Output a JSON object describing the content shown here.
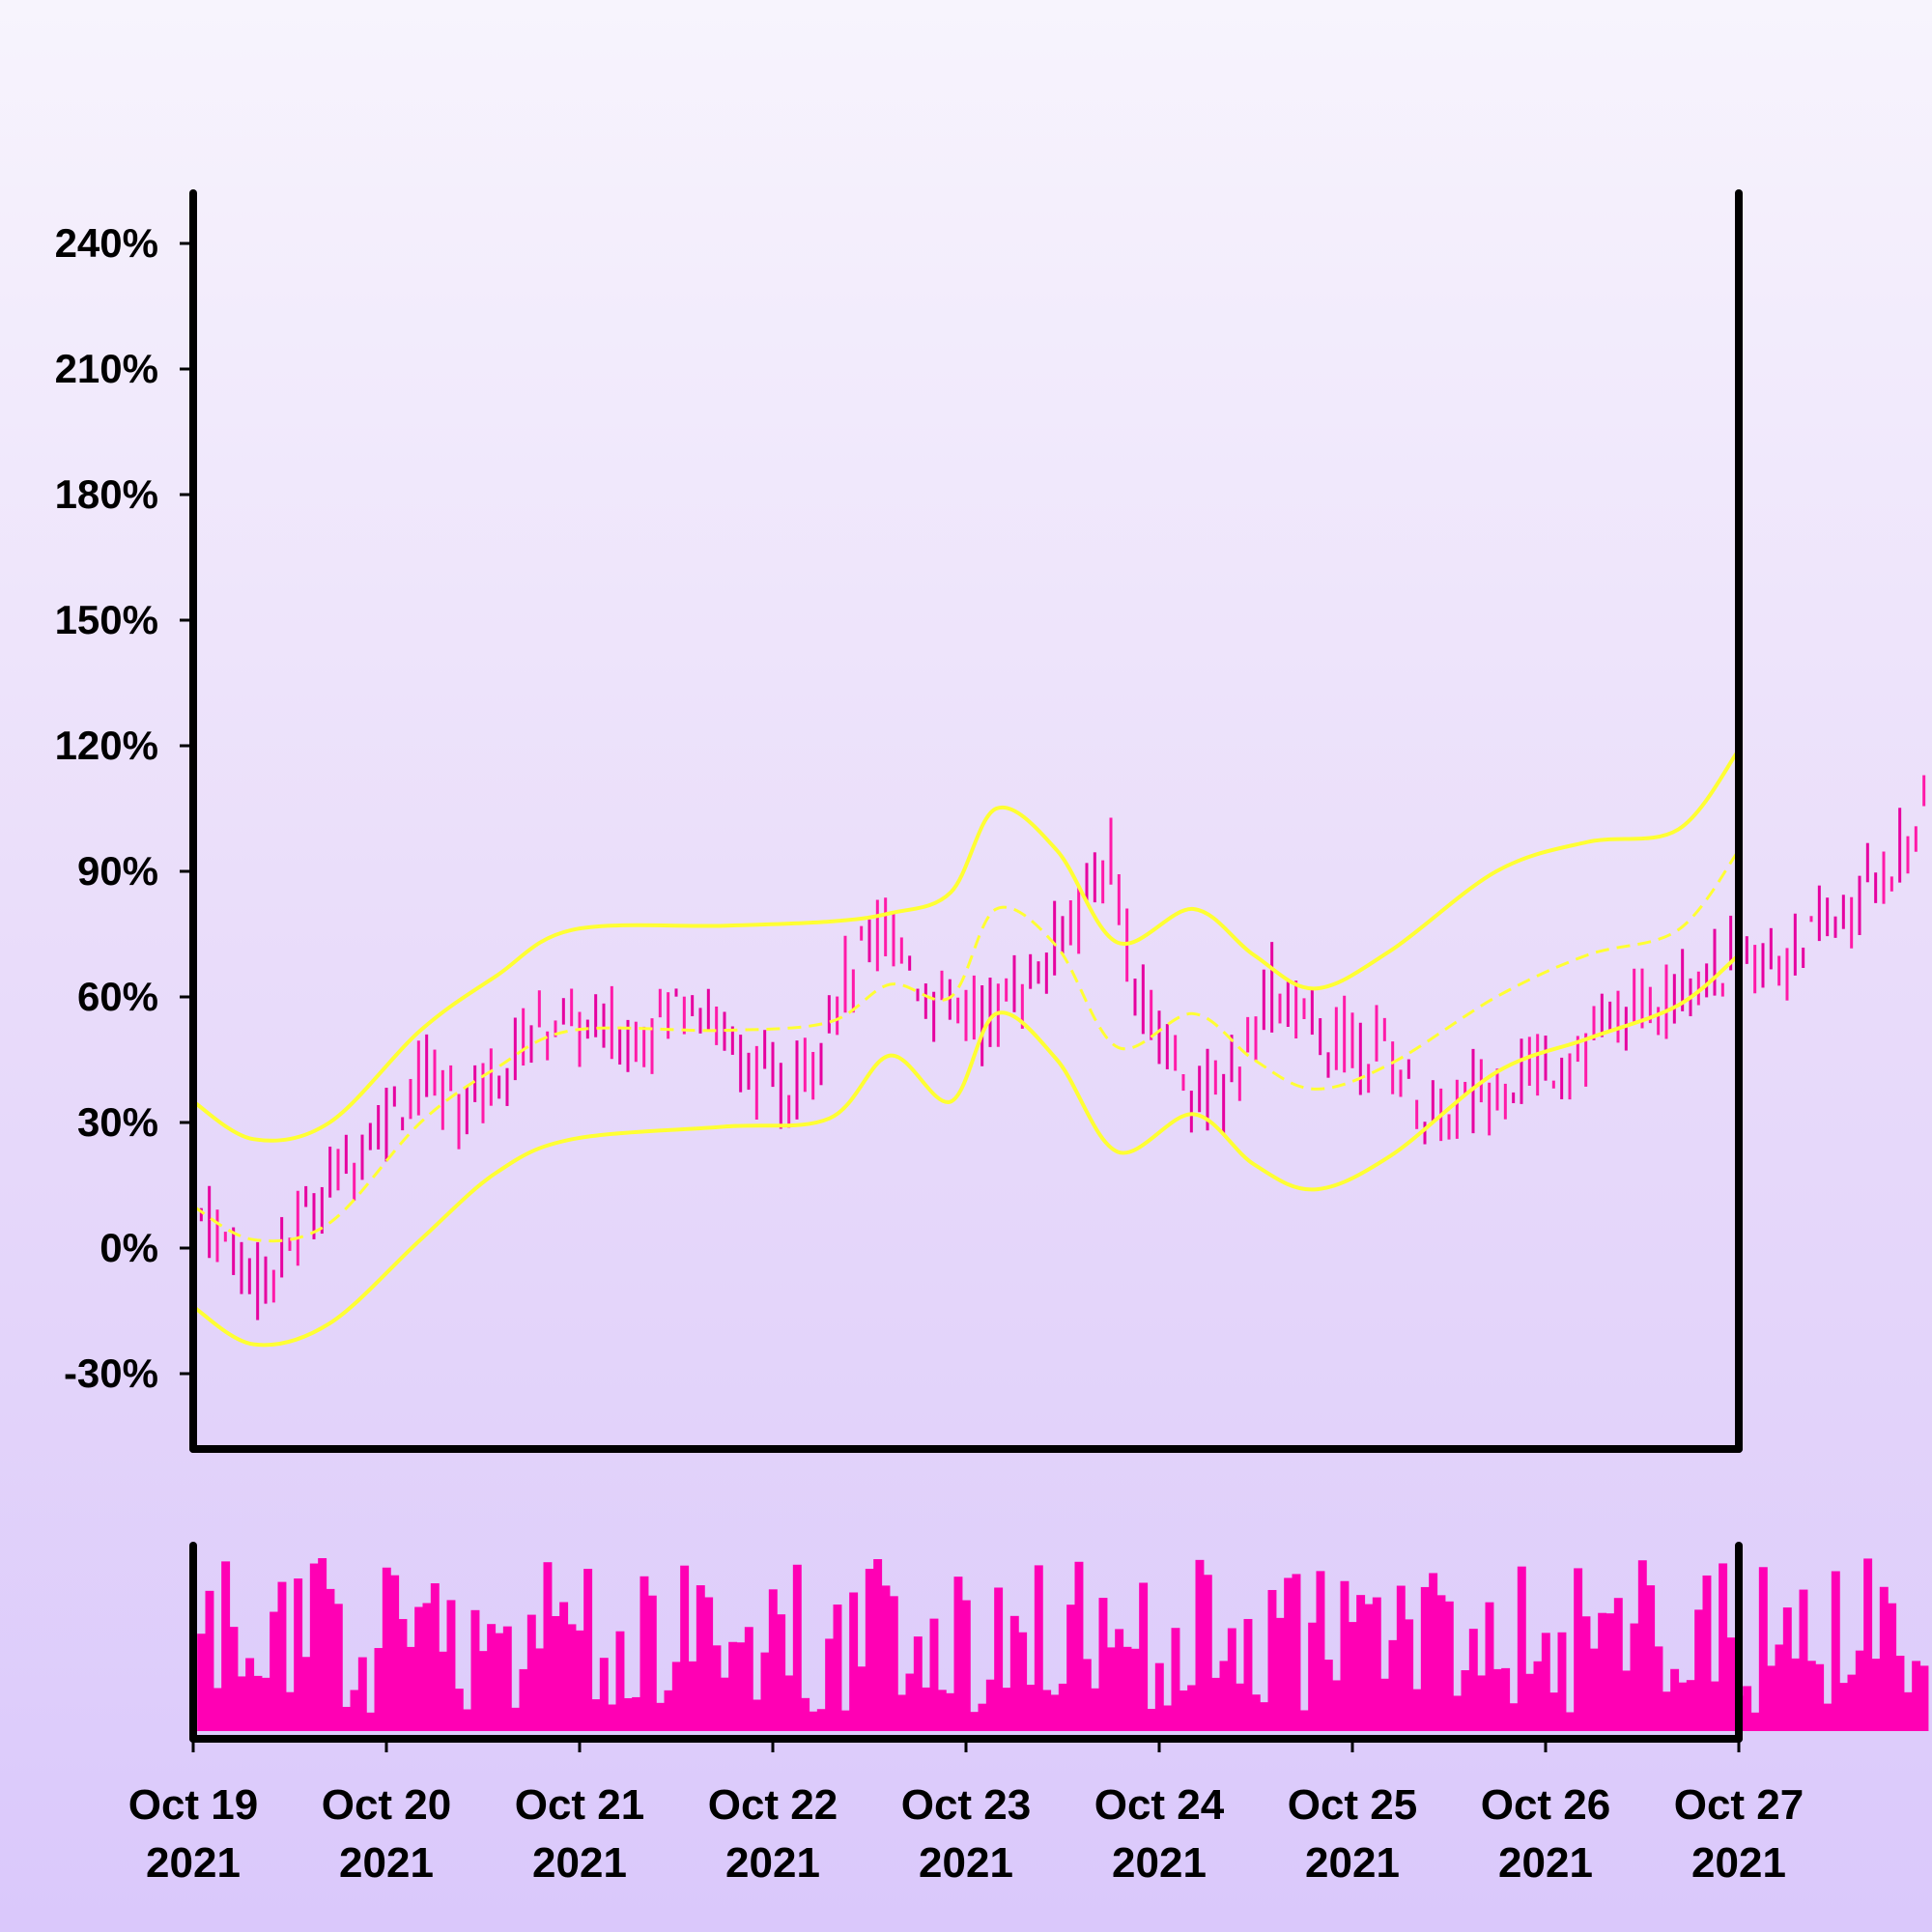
{
  "chart_data": {
    "type": "ohlc",
    "title": "",
    "xlabel": "",
    "ylabel": "",
    "ylim": [
      -48,
      252
    ],
    "y_ticks": [
      -30,
      0,
      30,
      60,
      90,
      120,
      150,
      180,
      210,
      240
    ],
    "y_tick_format": "{v}%",
    "x_range": [
      "2021-10-19",
      "2021-10-27"
    ],
    "x_ticks": [
      {
        "date": "2021-10-19",
        "line1": "Oct 19",
        "line2": "2021"
      },
      {
        "date": "2021-10-20",
        "line1": "Oct 20",
        "line2": "2021"
      },
      {
        "date": "2021-10-21",
        "line1": "Oct 21",
        "line2": "2021"
      },
      {
        "date": "2021-10-22",
        "line1": "Oct 22",
        "line2": "2021"
      },
      {
        "date": "2021-10-23",
        "line1": "Oct 23",
        "line2": "2021"
      },
      {
        "date": "2021-10-24",
        "line1": "Oct 24",
        "line2": "2021"
      },
      {
        "date": "2021-10-25",
        "line1": "Oct 25",
        "line2": "2021"
      },
      {
        "date": "2021-10-26",
        "line1": "Oct 26",
        "line2": "2021"
      },
      {
        "date": "2021-10-27",
        "line1": "Oct 27",
        "line2": "2021"
      }
    ],
    "bar_interval_hours": 1,
    "anchor_series": {
      "description_of_price_path": "hourly OHLC, values in percent",
      "anchors": [
        {
          "date": "2021-10-19T00:00",
          "close": 10
        },
        {
          "date": "2021-10-19T09:00",
          "close": -8
        },
        {
          "date": "2021-10-19T14:00",
          "close": 8
        },
        {
          "date": "2021-10-19T22:00",
          "close": 28
        },
        {
          "date": "2021-10-20T04:00",
          "close": 40
        },
        {
          "date": "2021-10-20T10:00",
          "close": 35
        },
        {
          "date": "2021-10-20T20:00",
          "close": 55
        },
        {
          "date": "2021-10-21T06:00",
          "close": 50
        },
        {
          "date": "2021-10-21T14:00",
          "close": 62
        },
        {
          "date": "2021-10-21T20:00",
          "close": 45
        },
        {
          "date": "2021-10-22T02:00",
          "close": 35
        },
        {
          "date": "2021-10-22T08:00",
          "close": 60
        },
        {
          "date": "2021-10-22T14:00",
          "close": 78
        },
        {
          "date": "2021-10-22T20:00",
          "close": 58
        },
        {
          "date": "2021-10-23T02:00",
          "close": 55
        },
        {
          "date": "2021-10-23T10:00",
          "close": 68
        },
        {
          "date": "2021-10-23T18:00",
          "close": 95
        },
        {
          "date": "2021-10-23T21:00",
          "close": 60
        },
        {
          "date": "2021-10-24T04:00",
          "close": 40
        },
        {
          "date": "2021-10-24T08:00",
          "close": 35
        },
        {
          "date": "2021-10-24T14:00",
          "close": 62
        },
        {
          "date": "2021-10-24T20:00",
          "close": 50
        },
        {
          "date": "2021-10-25T04:00",
          "close": 48
        },
        {
          "date": "2021-10-25T10:00",
          "close": 30
        },
        {
          "date": "2021-10-25T18:00",
          "close": 40
        },
        {
          "date": "2021-10-26T02:00",
          "close": 45
        },
        {
          "date": "2021-10-26T10:00",
          "close": 55
        },
        {
          "date": "2021-10-26T18:00",
          "close": 65
        },
        {
          "date": "2021-10-27T06:00",
          "close": 70
        },
        {
          "date": "2021-10-27T14:00",
          "close": 80
        },
        {
          "date": "2021-10-27T23:00",
          "close": 103
        }
      ]
    },
    "bollinger_bands": {
      "upper": [
        [
          0,
          35
        ],
        [
          0.4,
          26
        ],
        [
          0.9,
          30
        ],
        [
          1.5,
          52
        ],
        [
          2.0,
          65
        ],
        [
          2.5,
          76
        ],
        [
          3.5,
          77
        ],
        [
          4.2,
          78
        ],
        [
          4.6,
          80
        ],
        [
          5.0,
          85
        ],
        [
          5.3,
          105
        ],
        [
          5.7,
          95
        ],
        [
          6.1,
          73
        ],
        [
          6.6,
          81
        ],
        [
          7.0,
          70
        ],
        [
          7.4,
          62
        ],
        [
          7.9,
          71
        ],
        [
          8.6,
          90
        ],
        [
          9.2,
          97
        ],
        [
          9.8,
          100
        ],
        [
          10.2,
          119
        ]
      ],
      "middle": [
        [
          0,
          10
        ],
        [
          0.4,
          2
        ],
        [
          0.9,
          6
        ],
        [
          1.5,
          30
        ],
        [
          2.0,
          43
        ],
        [
          2.5,
          52
        ],
        [
          3.5,
          52
        ],
        [
          4.2,
          54
        ],
        [
          4.6,
          63
        ],
        [
          5.0,
          60
        ],
        [
          5.3,
          81
        ],
        [
          5.7,
          72
        ],
        [
          6.1,
          48
        ],
        [
          6.6,
          56
        ],
        [
          7.0,
          45
        ],
        [
          7.4,
          38
        ],
        [
          7.9,
          44
        ],
        [
          8.6,
          60
        ],
        [
          9.2,
          70
        ],
        [
          9.8,
          76
        ],
        [
          10.2,
          95
        ]
      ],
      "lower": [
        [
          0,
          -14
        ],
        [
          0.4,
          -23
        ],
        [
          0.9,
          -18
        ],
        [
          1.5,
          2
        ],
        [
          2.0,
          18
        ],
        [
          2.5,
          26
        ],
        [
          3.5,
          29
        ],
        [
          4.2,
          31
        ],
        [
          4.6,
          46
        ],
        [
          5.0,
          35
        ],
        [
          5.3,
          56
        ],
        [
          5.7,
          45
        ],
        [
          6.1,
          23
        ],
        [
          6.6,
          32
        ],
        [
          7.0,
          20
        ],
        [
          7.4,
          14
        ],
        [
          7.9,
          22
        ],
        [
          8.6,
          42
        ],
        [
          9.2,
          50
        ],
        [
          9.8,
          58
        ],
        [
          10.2,
          70
        ]
      ]
    },
    "volume": {
      "ylim": [
        0,
        100
      ],
      "note": "one bar per hour"
    },
    "colors": {
      "bars": "#ff1aa8",
      "bars_dark": "#e600a0",
      "volume": "#ff00b4",
      "bands": "#ffff33",
      "axis": "#000000"
    },
    "grid": false,
    "legend": "none"
  }
}
